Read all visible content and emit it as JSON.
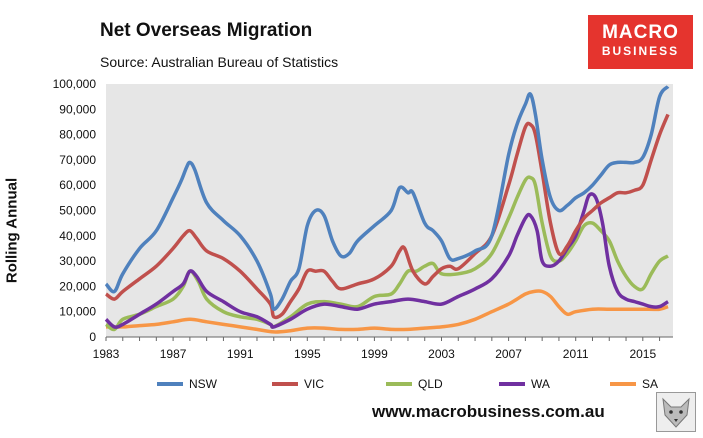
{
  "header": {
    "title": "Net Overseas Migration",
    "subtitle": "Source: Australian Bureau of Statistics"
  },
  "logo": {
    "line1": "MACRO",
    "line2": "BUSINESS",
    "color": "#e5342e"
  },
  "footer": {
    "url": "www.macrobusiness.com.au"
  },
  "chart_data": {
    "type": "line",
    "ylabel": "Rolling Annual",
    "xlim": [
      1983,
      2016.8
    ],
    "ylim": [
      0,
      100000
    ],
    "yticks": [
      0,
      10000,
      20000,
      30000,
      40000,
      50000,
      60000,
      70000,
      80000,
      90000,
      100000
    ],
    "ytick_labels": [
      "0",
      "10,000",
      "20,000",
      "30,000",
      "40,000",
      "50,000",
      "60,000",
      "70,000",
      "80,000",
      "90,000",
      "100,000"
    ],
    "xticks": [
      1983,
      1987,
      1991,
      1995,
      1999,
      2003,
      2007,
      2011,
      2015
    ],
    "xtick_labels": [
      "1983",
      "1987",
      "1991",
      "1995",
      "1999",
      "2003",
      "2007",
      "2011",
      "2015"
    ],
    "grid": false,
    "plot_background": "#e6e6e6",
    "legend_position": "bottom",
    "series": [
      {
        "name": "NSW",
        "color": "#4f81bd",
        "x": [
          1983,
          1983.5,
          1984,
          1985,
          1986,
          1987,
          1987.5,
          1987.8,
          1988,
          1988.3,
          1989,
          1990,
          1991,
          1992,
          1992.8,
          1993,
          1993.5,
          1994,
          1994.5,
          1995,
          1995.5,
          1996,
          1996.5,
          1997,
          1997.5,
          1998,
          1999,
          2000,
          2000.5,
          2001,
          2001.3,
          2002,
          2002.5,
          2003,
          2003.5,
          2004,
          2005,
          2006,
          2007,
          2007.5,
          2008,
          2008.3,
          2008.6,
          2009,
          2009.5,
          2010,
          2010.5,
          2011,
          2011.5,
          2012,
          2012.5,
          2013,
          2013.5,
          2014,
          2014.5,
          2015,
          2015.5,
          2016,
          2016.5
        ],
        "y": [
          21000,
          18000,
          25000,
          35000,
          42000,
          55000,
          62000,
          67000,
          69000,
          66000,
          53000,
          46000,
          40000,
          30000,
          17000,
          11000,
          15000,
          22000,
          27000,
          44000,
          50000,
          48000,
          38000,
          32000,
          33000,
          38000,
          44000,
          50000,
          59000,
          57000,
          57000,
          45000,
          42000,
          38000,
          31000,
          31000,
          34000,
          40000,
          72000,
          84000,
          92000,
          96000,
          88000,
          70000,
          55000,
          50000,
          52000,
          55000,
          57000,
          60000,
          64000,
          68000,
          69000,
          69000,
          69000,
          71000,
          80000,
          95000,
          99000
        ]
      },
      {
        "name": "VIC",
        "color": "#c0504d",
        "x": [
          1983,
          1983.5,
          1984,
          1985,
          1986,
          1987,
          1987.6,
          1988,
          1988.4,
          1989,
          1990,
          1991,
          1992,
          1992.8,
          1993,
          1993.5,
          1994,
          1994.5,
          1995,
          1995.5,
          1996,
          1996.5,
          1997,
          1998,
          1999,
          2000,
          2000.5,
          2000.8,
          2001.3,
          2002,
          2002.5,
          2003,
          2003.5,
          2004,
          2005,
          2006,
          2007,
          2007.5,
          2008,
          2008.3,
          2008.6,
          2009,
          2009.5,
          2010,
          2010.5,
          2011,
          2011.5,
          2012,
          2012.5,
          2013,
          2013.5,
          2014,
          2014.5,
          2015,
          2015.5,
          2016,
          2016.5
        ],
        "y": [
          17000,
          15000,
          18000,
          23000,
          28000,
          35000,
          40000,
          42000,
          39000,
          34000,
          31000,
          26000,
          19000,
          13000,
          8000,
          9000,
          14000,
          19000,
          26000,
          26000,
          26000,
          22000,
          19000,
          21000,
          23000,
          28000,
          34000,
          35000,
          26000,
          21000,
          24000,
          27000,
          28000,
          27000,
          33000,
          40000,
          60000,
          72000,
          83000,
          84000,
          80000,
          65000,
          45000,
          33000,
          36000,
          42000,
          47000,
          50000,
          53000,
          55000,
          57000,
          57000,
          58000,
          60000,
          70000,
          80000,
          88000
        ]
      },
      {
        "name": "QLD",
        "color": "#9bbb59",
        "x": [
          1983,
          1983.5,
          1984,
          1985,
          1986,
          1987,
          1987.6,
          1988,
          1988.5,
          1989,
          1990,
          1991,
          1992,
          1992.8,
          1993,
          1994,
          1995,
          1996,
          1997,
          1998,
          1999,
          2000,
          2000.5,
          2001,
          2001.5,
          2002,
          2002.5,
          2003,
          2004,
          2005,
          2006,
          2007,
          2007.5,
          2008,
          2008.3,
          2008.6,
          2009,
          2009.5,
          2010,
          2010.5,
          2011,
          2011.5,
          2012,
          2012.5,
          2013,
          2013.5,
          2014,
          2014.5,
          2015,
          2015.5,
          2016,
          2016.5
        ],
        "y": [
          5000,
          3000,
          7000,
          9000,
          12000,
          15000,
          20000,
          26000,
          22000,
          15000,
          10000,
          8000,
          7000,
          5000,
          4000,
          8000,
          13000,
          14000,
          13000,
          12000,
          16000,
          17000,
          21000,
          26000,
          26000,
          28000,
          29000,
          25000,
          25000,
          27000,
          33000,
          47000,
          55000,
          62000,
          63000,
          60000,
          45000,
          32000,
          30000,
          33000,
          38000,
          44000,
          45000,
          42000,
          38000,
          30000,
          24000,
          20000,
          19000,
          25000,
          30000,
          32000
        ]
      },
      {
        "name": "WA",
        "color": "#7030a0",
        "x": [
          1983,
          1983.5,
          1984,
          1985,
          1986,
          1987,
          1987.6,
          1988,
          1988.4,
          1989,
          1990,
          1991,
          1992,
          1992.8,
          1993,
          1994,
          1995,
          1996,
          1997,
          1998,
          1999,
          2000,
          2001,
          2002,
          2003,
          2004,
          2005,
          2006,
          2007,
          2007.5,
          2008,
          2008.3,
          2008.7,
          2009,
          2009.5,
          2010,
          2010.5,
          2011,
          2011.5,
          2011.8,
          2012.2,
          2012.6,
          2013,
          2013.5,
          2014,
          2014.5,
          2015,
          2015.5,
          2016,
          2016.5
        ],
        "y": [
          7000,
          4000,
          5000,
          9000,
          13000,
          18000,
          21000,
          26000,
          24000,
          18000,
          14000,
          10000,
          8000,
          5000,
          4000,
          7000,
          11000,
          13000,
          12000,
          11000,
          13000,
          14000,
          15000,
          14000,
          13000,
          16000,
          19000,
          23000,
          32000,
          40000,
          47000,
          48000,
          42000,
          30000,
          28000,
          30000,
          35000,
          40000,
          50000,
          56000,
          55000,
          45000,
          28000,
          18000,
          15000,
          14000,
          13000,
          12000,
          12000,
          14000
        ]
      },
      {
        "name": "SA",
        "color": "#f79646",
        "x": [
          1983,
          1984,
          1985,
          1986,
          1987,
          1988,
          1989,
          1990,
          1991,
          1992,
          1993,
          1994,
          1995,
          1996,
          1997,
          1998,
          1999,
          2000,
          2001,
          2002,
          2003,
          2004,
          2005,
          2006,
          2007,
          2007.5,
          2008,
          2008.5,
          2009,
          2009.5,
          2010,
          2010.5,
          2011,
          2012,
          2013,
          2014,
          2015,
          2016,
          2016.5
        ],
        "y": [
          4000,
          4000,
          4500,
          5000,
          6000,
          7000,
          6000,
          5000,
          4000,
          3000,
          2000,
          2500,
          3500,
          3500,
          3000,
          3000,
          3500,
          3000,
          3000,
          3500,
          4000,
          5000,
          7000,
          10000,
          13000,
          15000,
          17000,
          18000,
          18000,
          16000,
          12000,
          9000,
          10000,
          11000,
          11000,
          11000,
          11000,
          11000,
          12000
        ]
      }
    ]
  }
}
